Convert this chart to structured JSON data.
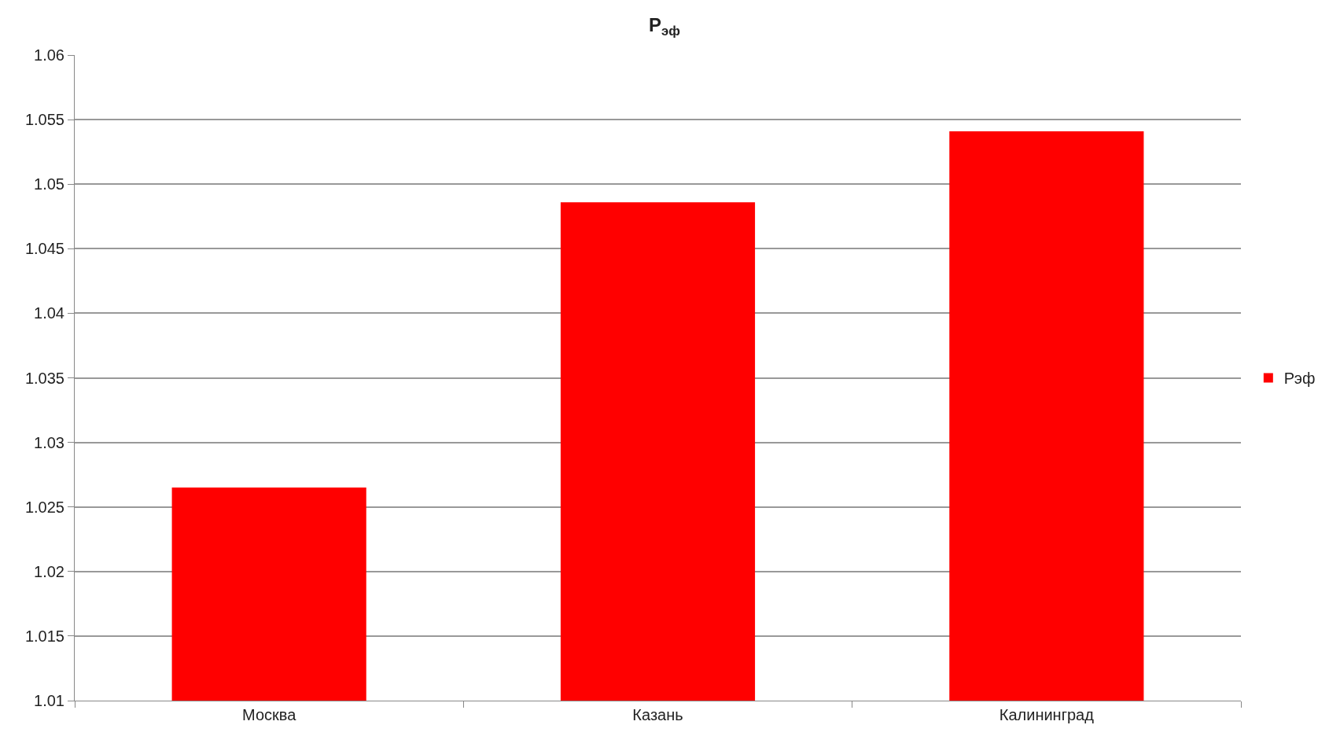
{
  "chart_data": {
    "type": "bar",
    "title": "Р$_{эф}$",
    "categories": [
      "Москва",
      "Казань",
      "Калининград"
    ],
    "series": [
      {
        "name": "Рэф",
        "color": "#ff0000",
        "values": [
          1.0265,
          1.0486,
          1.0541
        ]
      }
    ],
    "ylim": [
      1.01,
      1.06
    ],
    "yticks": [
      1.01,
      1.015,
      1.02,
      1.025,
      1.03,
      1.035,
      1.04,
      1.045,
      1.05,
      1.055,
      1.06
    ],
    "grid": "y",
    "legend": "right"
  }
}
